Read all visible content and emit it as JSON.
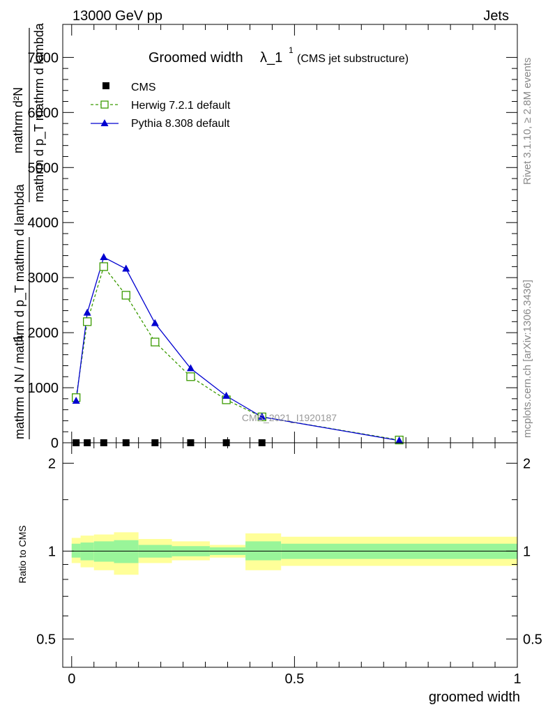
{
  "header": {
    "left": "13000 GeV pp",
    "right": "Jets"
  },
  "side_labels": {
    "rivet": "Rivet 3.1.10, ≥ 2.8M events",
    "mcplots": "mcplots.cern.ch [arXiv:1306.3436]"
  },
  "colors": {
    "cms": "#000000",
    "herwig": "#3a9a00",
    "pythia": "#0000d0",
    "band_inner": "#99f599",
    "band_outer": "#ffff99"
  },
  "chart_data": [
    {
      "type": "line",
      "title_main": "Groomed width",
      "title_lambda": "λ_1",
      "title_sup": "1",
      "title_sub": "(CMS jet substructure)",
      "ylabel_num": "1",
      "ylabel_den": "mathrm d N / mathrm d p_T mathrm d lambda",
      "ylabel_frac": "mathrm d²N",
      "ylabel_frac_den": "mathrm d p_T mathrm d lambda",
      "watermark": "CMS_2021_I1920187",
      "ylim": [
        0,
        7600
      ],
      "xlim": [
        -0.02,
        1.0
      ],
      "yticks": [
        0,
        1000,
        2000,
        3000,
        4000,
        5000,
        6000,
        7000
      ],
      "ytick_labels": [
        "0",
        "1000",
        "2000",
        "3000",
        "4000",
        "5000",
        "6000",
        "7000"
      ],
      "legend": [
        {
          "name": "CMS",
          "marker": "square-filled"
        },
        {
          "name": "Herwig 7.2.1 default",
          "marker": "square-open"
        },
        {
          "name": "Pythia 8.308 default",
          "marker": "triangle"
        }
      ],
      "series": [
        {
          "name": "CMS",
          "x": [
            0.01,
            0.035,
            0.072,
            0.122,
            0.187,
            0.267,
            0.347,
            0.427
          ],
          "y": [
            0,
            0,
            0,
            0,
            0,
            0,
            0,
            0
          ]
        },
        {
          "name": "Herwig 7.2.1 default",
          "x": [
            0.01,
            0.035,
            0.072,
            0.122,
            0.187,
            0.267,
            0.347,
            0.427,
            0.735
          ],
          "y": [
            820,
            2200,
            3200,
            2680,
            1830,
            1200,
            780,
            470,
            50
          ]
        },
        {
          "name": "Pythia 8.308 default",
          "x": [
            0.01,
            0.035,
            0.072,
            0.122,
            0.187,
            0.267,
            0.347,
            0.427,
            0.735
          ],
          "y": [
            760,
            2360,
            3370,
            3160,
            2170,
            1350,
            850,
            470,
            40
          ]
        }
      ]
    },
    {
      "type": "area",
      "ylabel": "Ratio to CMS",
      "xlabel": "groomed width",
      "ylim": [
        0.4,
        2.35
      ],
      "log_y": true,
      "yticks": [
        0.5,
        1,
        2
      ],
      "ytick_labels": [
        "0.5",
        "1",
        "2"
      ],
      "xticks": [
        0,
        0.5,
        1
      ],
      "xtick_labels": [
        "0",
        "0.5",
        "1"
      ],
      "bins": [
        {
          "x0": 0.0,
          "x1": 0.02,
          "inner": [
            0.95,
            1.06
          ],
          "outer": [
            0.91,
            1.11
          ]
        },
        {
          "x0": 0.02,
          "x1": 0.05,
          "inner": [
            0.93,
            1.07
          ],
          "outer": [
            0.88,
            1.13
          ]
        },
        {
          "x0": 0.05,
          "x1": 0.095,
          "inner": [
            0.92,
            1.08
          ],
          "outer": [
            0.86,
            1.14
          ]
        },
        {
          "x0": 0.095,
          "x1": 0.15,
          "inner": [
            0.91,
            1.09
          ],
          "outer": [
            0.83,
            1.16
          ]
        },
        {
          "x0": 0.15,
          "x1": 0.225,
          "inner": [
            0.95,
            1.05
          ],
          "outer": [
            0.91,
            1.1
          ]
        },
        {
          "x0": 0.225,
          "x1": 0.31,
          "inner": [
            0.96,
            1.04
          ],
          "outer": [
            0.93,
            1.08
          ]
        },
        {
          "x0": 0.31,
          "x1": 0.39,
          "inner": [
            0.97,
            1.03
          ],
          "outer": [
            0.95,
            1.05
          ]
        },
        {
          "x0": 0.39,
          "x1": 0.47,
          "inner": [
            0.93,
            1.08
          ],
          "outer": [
            0.86,
            1.15
          ]
        },
        {
          "x0": 0.47,
          "x1": 1.0,
          "inner": [
            0.94,
            1.06
          ],
          "outer": [
            0.89,
            1.12
          ]
        }
      ]
    }
  ]
}
